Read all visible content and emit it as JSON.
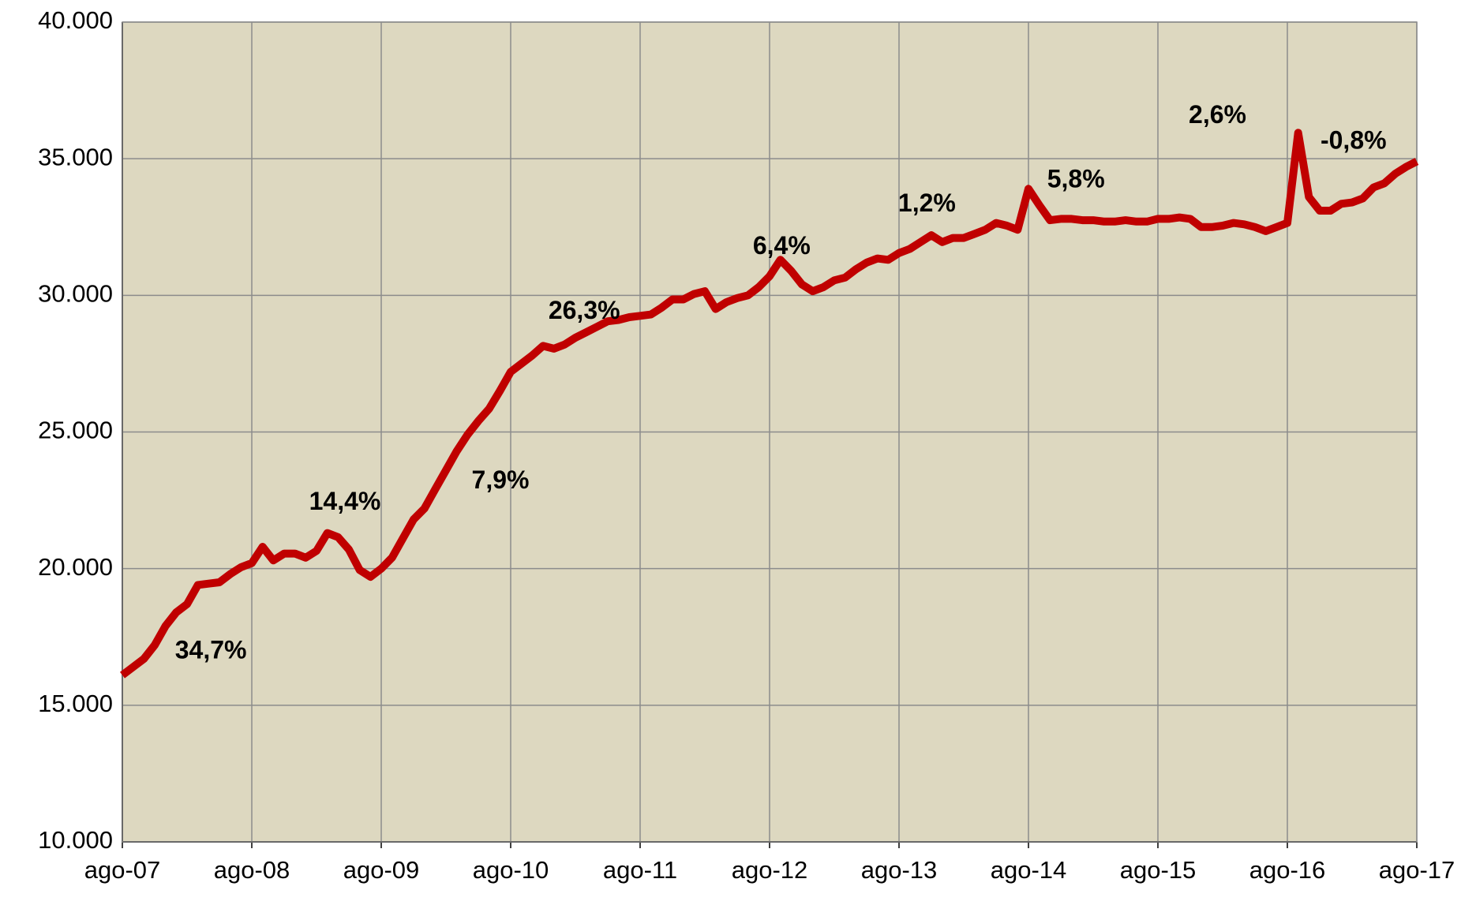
{
  "chart_data": {
    "type": "line",
    "categories": [
      "ago-07",
      null,
      null,
      null,
      null,
      null,
      null,
      null,
      null,
      null,
      null,
      null,
      "ago-08",
      null,
      null,
      null,
      null,
      null,
      null,
      null,
      null,
      null,
      null,
      null,
      "ago-09",
      null,
      null,
      null,
      null,
      null,
      null,
      null,
      null,
      null,
      null,
      null,
      "ago-10",
      null,
      null,
      null,
      null,
      null,
      null,
      null,
      null,
      null,
      null,
      null,
      "ago-11",
      null,
      null,
      null,
      null,
      null,
      null,
      null,
      null,
      null,
      null,
      null,
      "ago-12",
      null,
      null,
      null,
      null,
      null,
      null,
      null,
      null,
      null,
      null,
      null,
      "ago-13",
      null,
      null,
      null,
      null,
      null,
      null,
      null,
      null,
      null,
      null,
      null,
      "ago-14",
      null,
      null,
      null,
      null,
      null,
      null,
      null,
      null,
      null,
      null,
      null,
      "ago-15",
      null,
      null,
      null,
      null,
      null,
      null,
      null,
      null,
      null,
      null,
      null,
      "ago-16",
      null,
      null,
      null,
      null,
      null,
      null,
      null,
      null,
      null,
      null,
      null,
      "ago-17"
    ],
    "values": [
      16100,
      16400,
      16700,
      17200,
      17900,
      18400,
      18700,
      19400,
      19450,
      19500,
      19800,
      20050,
      20200,
      20800,
      20300,
      20550,
      20550,
      20400,
      20650,
      21300,
      21150,
      20700,
      19950,
      19700,
      20000,
      20400,
      21100,
      21800,
      22200,
      22900,
      23600,
      24300,
      24900,
      25400,
      25850,
      26500,
      27200,
      27500,
      27800,
      28150,
      28050,
      28200,
      28450,
      28650,
      28850,
      29050,
      29100,
      29200,
      29250,
      29300,
      29550,
      29850,
      29850,
      30050,
      30150,
      29500,
      29750,
      29900,
      30000,
      30300,
      30700,
      31300,
      30900,
      30400,
      30150,
      30300,
      30550,
      30650,
      30950,
      31200,
      31350,
      31300,
      31550,
      31700,
      31950,
      32200,
      31950,
      32100,
      32100,
      32250,
      32400,
      32650,
      32550,
      32400,
      33900,
      33300,
      32750,
      32800,
      32800,
      32750,
      32750,
      32700,
      32700,
      32750,
      32700,
      32700,
      32800,
      32800,
      32850,
      32800,
      32500,
      32500,
      32550,
      32650,
      32600,
      32500,
      32350,
      32500,
      32650,
      35950,
      33600,
      33100,
      33100,
      33350,
      33400,
      33550,
      33950,
      34100,
      34450,
      34700,
      34900
    ],
    "color": "#c00000",
    "ylim": [
      10000,
      40000
    ],
    "yticks": [
      {
        "value": 10000,
        "label": "10.000"
      },
      {
        "value": 15000,
        "label": "15.000"
      },
      {
        "value": 20000,
        "label": "20.000"
      },
      {
        "value": 25000,
        "label": "25.000"
      },
      {
        "value": 30000,
        "label": "30.000"
      },
      {
        "value": 35000,
        "label": "35.000"
      },
      {
        "value": 40000,
        "label": "40.000"
      }
    ],
    "grid": true,
    "annotations": [
      "34,7%",
      "14,4%",
      "7,9%",
      "26,3%",
      "6,4%",
      "1,2%",
      "5,8%",
      "2,6%",
      "-0,8%"
    ]
  }
}
